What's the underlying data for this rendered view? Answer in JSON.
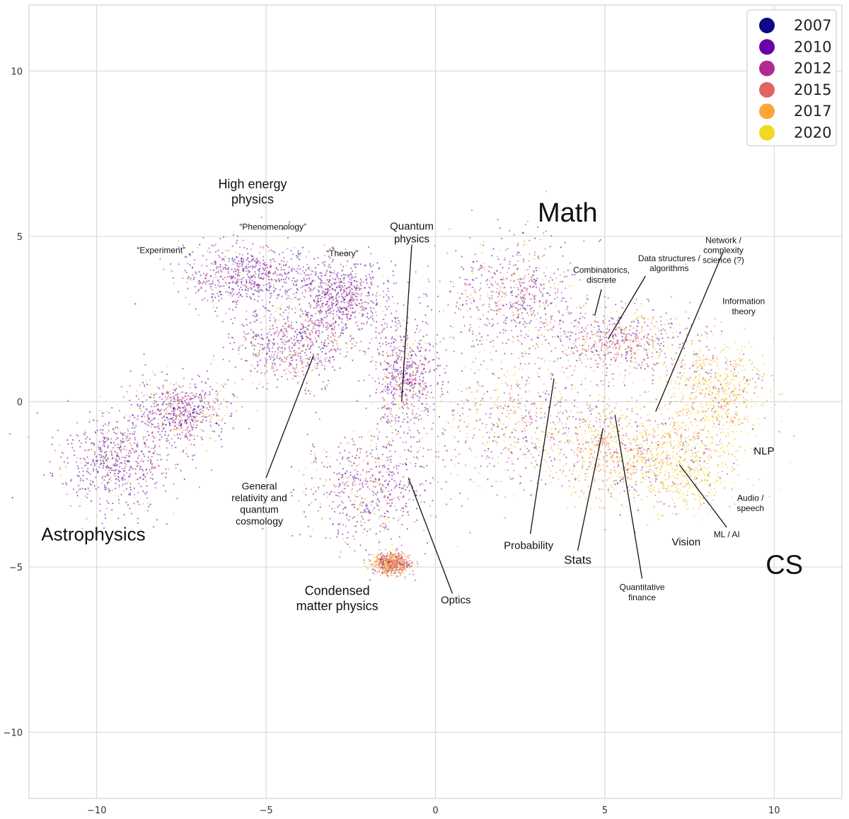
{
  "chart_data": {
    "type": "scatter",
    "title": "",
    "xlabel": "",
    "ylabel": "",
    "xlim": [
      -12,
      12
    ],
    "ylim": [
      -12,
      12
    ],
    "grid": true,
    "x_ticks": [
      -10,
      -5,
      0,
      5,
      10
    ],
    "y_ticks": [
      -10,
      -5,
      0,
      5,
      10
    ],
    "x_tick_labels": [
      "−10",
      "−5",
      "0",
      "5",
      "10"
    ],
    "y_tick_labels": [
      "−10",
      "−5",
      "0",
      "5",
      "10"
    ],
    "legend": {
      "placement": "top-right",
      "entries": [
        {
          "label": "2007",
          "color": "#0d0887"
        },
        {
          "label": "2010",
          "color": "#6a00a8"
        },
        {
          "label": "2012",
          "color": "#b12a90"
        },
        {
          "label": "2015",
          "color": "#e16462"
        },
        {
          "label": "2017",
          "color": "#fca636"
        },
        {
          "label": "2020",
          "color": "#f0d91e"
        }
      ]
    },
    "clusters": [
      {
        "cx": -9.5,
        "cy": -1.8,
        "rx": 1.6,
        "ry": 1.3,
        "weights": [
          0.15,
          0.45,
          0.2,
          0.1,
          0.07,
          0.03
        ]
      },
      {
        "cx": -7.5,
        "cy": -0.3,
        "rx": 1.3,
        "ry": 0.9,
        "weights": [
          0.1,
          0.35,
          0.25,
          0.15,
          0.1,
          0.05
        ]
      },
      {
        "cx": -5.5,
        "cy": 3.8,
        "rx": 1.8,
        "ry": 0.9,
        "weights": [
          0.15,
          0.5,
          0.2,
          0.08,
          0.05,
          0.02
        ]
      },
      {
        "cx": -2.8,
        "cy": 3.2,
        "rx": 1.2,
        "ry": 1.0,
        "weights": [
          0.15,
          0.5,
          0.2,
          0.08,
          0.05,
          0.02
        ]
      },
      {
        "cx": -4.2,
        "cy": 1.7,
        "rx": 1.6,
        "ry": 1.1,
        "weights": [
          0.08,
          0.35,
          0.25,
          0.15,
          0.12,
          0.05
        ]
      },
      {
        "cx": -2.0,
        "cy": -2.6,
        "rx": 1.7,
        "ry": 1.5,
        "weights": [
          0.1,
          0.4,
          0.2,
          0.12,
          0.12,
          0.06
        ]
      },
      {
        "cx": -0.9,
        "cy": 0.8,
        "rx": 0.9,
        "ry": 1.6,
        "weights": [
          0.08,
          0.4,
          0.25,
          0.12,
          0.1,
          0.05
        ]
      },
      {
        "cx": -1.3,
        "cy": -4.9,
        "rx": 0.5,
        "ry": 0.3,
        "weights": [
          0.02,
          0.05,
          0.1,
          0.3,
          0.4,
          0.13
        ]
      },
      {
        "cx": 2.4,
        "cy": 3.2,
        "rx": 1.8,
        "ry": 1.5,
        "weights": [
          0.08,
          0.35,
          0.25,
          0.15,
          0.12,
          0.05
        ]
      },
      {
        "cx": 2.5,
        "cy": -0.6,
        "rx": 2.4,
        "ry": 1.8,
        "weights": [
          0.03,
          0.15,
          0.2,
          0.2,
          0.25,
          0.17
        ]
      },
      {
        "cx": 5.5,
        "cy": 1.8,
        "rx": 1.8,
        "ry": 1.0,
        "weights": [
          0.05,
          0.2,
          0.25,
          0.2,
          0.2,
          0.1
        ]
      },
      {
        "cx": 5.3,
        "cy": -1.5,
        "rx": 1.6,
        "ry": 1.3,
        "weights": [
          0.02,
          0.06,
          0.12,
          0.2,
          0.3,
          0.3
        ]
      },
      {
        "cx": 7.3,
        "cy": -1.9,
        "rx": 1.6,
        "ry": 1.4,
        "weights": [
          0.01,
          0.03,
          0.05,
          0.1,
          0.25,
          0.56
        ]
      },
      {
        "cx": 8.3,
        "cy": 0.3,
        "rx": 1.3,
        "ry": 1.4,
        "weights": [
          0.01,
          0.04,
          0.07,
          0.13,
          0.3,
          0.45
        ]
      }
    ],
    "annotations": [
      {
        "lines": [
          "High energy",
          "physics"
        ],
        "x": -5.4,
        "y": 6.45,
        "size": 18,
        "anchor": "middle"
      },
      {
        "lines": [
          "“Experiment”"
        ],
        "x": -8.1,
        "y": 4.5,
        "size": 12,
        "anchor": "middle"
      },
      {
        "lines": [
          "“Phenomenology”"
        ],
        "x": -4.8,
        "y": 5.2,
        "size": 12,
        "anchor": "middle"
      },
      {
        "lines": [
          "“Theory”"
        ],
        "x": -2.75,
        "y": 4.4,
        "size": 12,
        "anchor": "middle"
      },
      {
        "lines": [
          "Quantum",
          "physics"
        ],
        "x": -0.7,
        "y": 5.2,
        "size": 15,
        "anchor": "middle"
      },
      {
        "lines": [
          "Math"
        ],
        "x": 3.9,
        "y": 5.45,
        "size": 38,
        "anchor": "middle"
      },
      {
        "lines": [
          "Network /",
          "complexity",
          "science (?)"
        ],
        "x": 8.5,
        "y": 4.8,
        "size": 12,
        "anchor": "middle"
      },
      {
        "lines": [
          "Data structures /",
          "algorithms"
        ],
        "x": 6.9,
        "y": 4.25,
        "size": 12,
        "anchor": "middle"
      },
      {
        "lines": [
          "Combinatorics,",
          "discrete"
        ],
        "x": 4.9,
        "y": 3.9,
        "size": 12,
        "anchor": "middle"
      },
      {
        "lines": [
          "Information",
          "theory"
        ],
        "x": 9.1,
        "y": 2.95,
        "size": 12,
        "anchor": "middle"
      },
      {
        "lines": [
          "NLP"
        ],
        "x": 9.7,
        "y": -1.6,
        "size": 15,
        "anchor": "middle"
      },
      {
        "lines": [
          "Audio /",
          "speech"
        ],
        "x": 9.3,
        "y": -3.0,
        "size": 12,
        "anchor": "middle"
      },
      {
        "lines": [
          "ML / AI"
        ],
        "x": 8.6,
        "y": -4.1,
        "size": 12,
        "anchor": "middle"
      },
      {
        "lines": [
          "Vision"
        ],
        "x": 7.4,
        "y": -4.35,
        "size": 15,
        "anchor": "middle"
      },
      {
        "lines": [
          "CS"
        ],
        "x": 10.3,
        "y": -5.2,
        "size": 38,
        "anchor": "middle"
      },
      {
        "lines": [
          "Probability"
        ],
        "x": 2.75,
        "y": -4.45,
        "size": 15,
        "anchor": "middle"
      },
      {
        "lines": [
          "Stats"
        ],
        "x": 4.2,
        "y": -4.9,
        "size": 17,
        "anchor": "middle"
      },
      {
        "lines": [
          "Quantitative",
          "finance"
        ],
        "x": 6.1,
        "y": -5.7,
        "size": 12,
        "anchor": "middle"
      },
      {
        "lines": [
          "Optics"
        ],
        "x": 0.6,
        "y": -6.1,
        "size": 15,
        "anchor": "middle"
      },
      {
        "lines": [
          "Condensed",
          "matter physics"
        ],
        "x": -2.9,
        "y": -5.85,
        "size": 18,
        "anchor": "middle"
      },
      {
        "lines": [
          "General",
          "relativity and",
          "quantum",
          "cosmology"
        ],
        "x": -5.2,
        "y": -2.65,
        "size": 14,
        "anchor": "middle"
      },
      {
        "lines": [
          "Astrophysics"
        ],
        "x": -10.1,
        "y": -4.2,
        "size": 26,
        "anchor": "middle"
      }
    ],
    "leaders": [
      {
        "from": [
          -0.7,
          4.75
        ],
        "to": [
          -1.0,
          0.0
        ]
      },
      {
        "from": [
          -5.0,
          -2.3
        ],
        "to": [
          -3.6,
          1.4
        ]
      },
      {
        "from": [
          0.5,
          -5.8
        ],
        "to": [
          -0.8,
          -2.3
        ]
      },
      {
        "from": [
          2.8,
          -4.0
        ],
        "to": [
          3.5,
          0.7
        ]
      },
      {
        "from": [
          4.2,
          -4.5
        ],
        "to": [
          4.95,
          -0.8
        ]
      },
      {
        "from": [
          6.1,
          -5.35
        ],
        "to": [
          5.3,
          -0.4
        ]
      },
      {
        "from": [
          8.6,
          -3.8
        ],
        "to": [
          7.2,
          -1.9
        ]
      },
      {
        "from": [
          8.5,
          4.55
        ],
        "to": [
          6.5,
          -0.3
        ]
      },
      {
        "from": [
          6.2,
          3.8
        ],
        "to": [
          5.1,
          1.9
        ]
      },
      {
        "from": [
          4.9,
          3.4
        ],
        "to": [
          4.7,
          2.6
        ]
      }
    ]
  }
}
